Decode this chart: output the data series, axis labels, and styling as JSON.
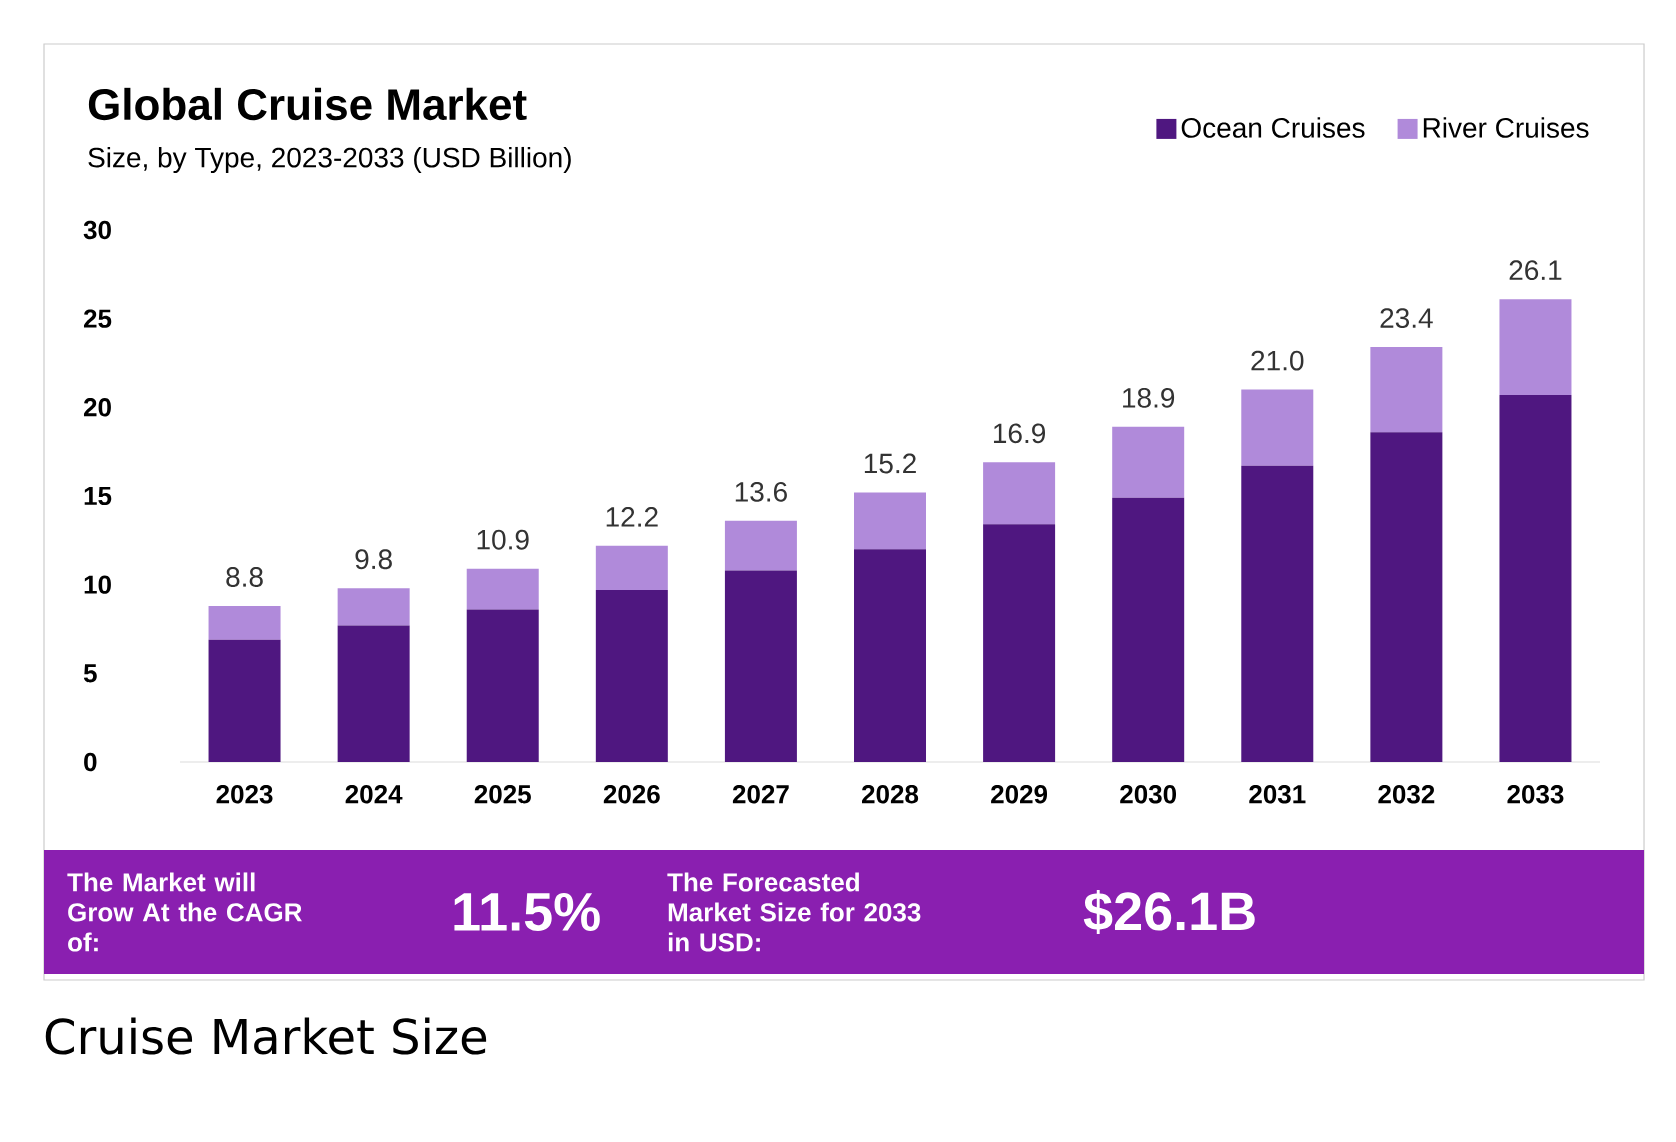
{
  "chart_data": {
    "type": "bar",
    "title": "Global Cruise Market",
    "subtitle": "Size, by Type, 2023-2033 (USD Billion)",
    "categories": [
      "2023",
      "2024",
      "2025",
      "2026",
      "2027",
      "2028",
      "2029",
      "2030",
      "2031",
      "2032",
      "2033"
    ],
    "stacked": true,
    "series": [
      {
        "name": "Ocean Cruises",
        "color": "#4f1780",
        "values": [
          6.9,
          7.7,
          8.6,
          9.7,
          10.8,
          12.0,
          13.4,
          14.9,
          16.7,
          18.6,
          20.7
        ]
      },
      {
        "name": "River Cruises",
        "color": "#b08ada",
        "values": [
          1.9,
          2.1,
          2.3,
          2.5,
          2.8,
          3.2,
          3.5,
          4.0,
          4.3,
          4.8,
          5.4
        ]
      }
    ],
    "totals": [
      "8.8",
      "9.8",
      "10.9",
      "12.2",
      "13.6",
      "15.2",
      "16.9",
      "18.9",
      "21.0",
      "23.4",
      "26.1"
    ],
    "ylim": [
      0,
      30
    ],
    "yticks": [
      0,
      5,
      10,
      15,
      20,
      25,
      30
    ],
    "grid": false,
    "legend": "top right",
    "annotations": [
      "The Market will Grow At the CAGR of:",
      "11.5%",
      "The Forecasted Market Size for 2033 in USD:",
      "$26.1B",
      "Cruise Market Size"
    ]
  }
}
